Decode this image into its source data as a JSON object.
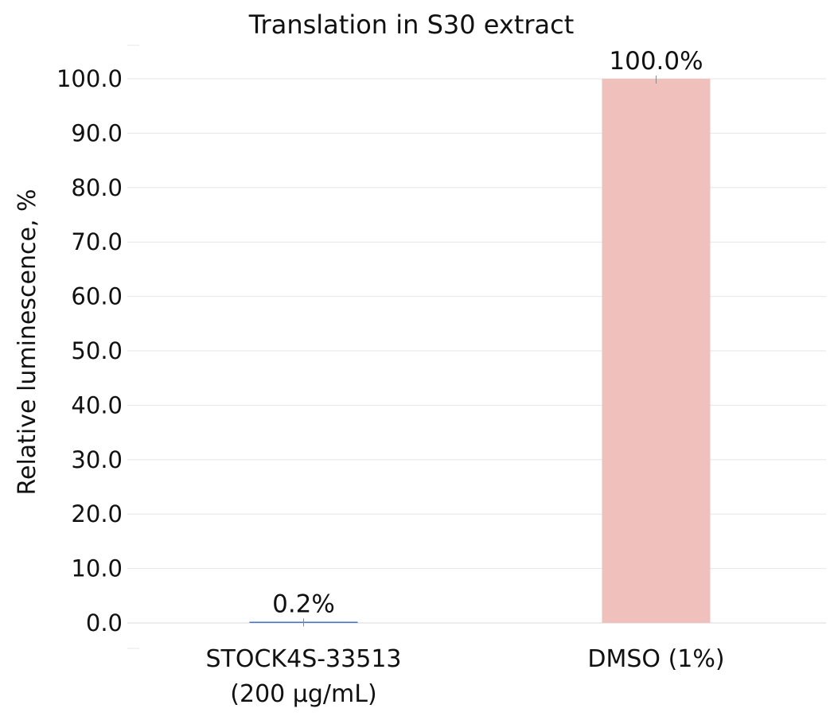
{
  "chart_data": {
    "type": "bar",
    "title": "Translation in S30 extract",
    "xlabel": "",
    "ylabel": "Relative luminescence, %",
    "categories": [
      [
        "STOCK4S-33513",
        "(200 µg/mL)"
      ],
      [
        "DMSO (1%)"
      ]
    ],
    "values": [
      0.2,
      100.0
    ],
    "data_labels": [
      "0.2%",
      "100.0%"
    ],
    "bar_colors": [
      "#4472c4",
      "#efc0bc"
    ],
    "ylim": [
      0,
      100
    ],
    "yticks": [
      "0.0",
      "10.0",
      "20.0",
      "30.0",
      "40.0",
      "50.0",
      "60.0",
      "70.0",
      "80.0",
      "90.0",
      "100.0"
    ],
    "grid": true,
    "legend": "none"
  }
}
